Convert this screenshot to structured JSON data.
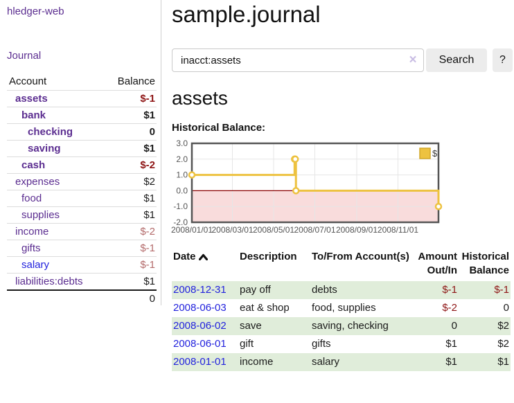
{
  "colors": {
    "link_purple": "#5b2d90",
    "link_blue": "#2222dd",
    "negative_strong": "#8e1515",
    "negative_muted": "#b36a6a",
    "row_stripe_green": "#e0edda",
    "chart_yellow": "#edc240"
  },
  "sidebar": {
    "brand": "hledger-web",
    "nav_journal": "Journal",
    "accounts_table": {
      "account_header": "Account",
      "balance_header": "Balance",
      "rows": [
        {
          "account": "assets",
          "balance": "$-1",
          "indent": 1,
          "bold": true,
          "neg": "strong"
        },
        {
          "account": "bank",
          "balance": "$1",
          "indent": 2,
          "bold": true
        },
        {
          "account": "checking",
          "balance": "0",
          "indent": 3,
          "bold": true
        },
        {
          "account": "saving",
          "balance": "$1",
          "indent": 3,
          "bold": true
        },
        {
          "account": "cash",
          "balance": "$-2",
          "indent": 2,
          "bold": true,
          "neg": "strong"
        },
        {
          "account": "expenses",
          "balance": "$2",
          "indent": 1
        },
        {
          "account": "food",
          "balance": "$1",
          "indent": 2
        },
        {
          "account": "supplies",
          "balance": "$1",
          "indent": 2
        },
        {
          "account": "income",
          "balance": "$-2",
          "indent": 1,
          "neg": "muted"
        },
        {
          "account": "gifts",
          "balance": "$-1",
          "indent": 2,
          "neg": "muted"
        },
        {
          "account": "salary",
          "balance": "$-1",
          "indent": 2,
          "neg": "muted",
          "link": "blue"
        },
        {
          "account": "liabilities:debts",
          "balance": "$1",
          "indent": 1
        }
      ],
      "total": "0"
    }
  },
  "main": {
    "title": "sample.journal",
    "search": {
      "value": "inacct:assets",
      "clear_icon": "×",
      "search_button": "Search",
      "help_button": "?"
    },
    "account_heading": "assets",
    "chart_title": "Historical Balance:"
  },
  "chart_data": {
    "type": "line",
    "step": true,
    "title": "Historical Balance",
    "series": [
      {
        "name": "$",
        "color": "#edc240",
        "points": [
          [
            "2008-01-01",
            1
          ],
          [
            "2008-06-01",
            2
          ],
          [
            "2008-06-02",
            2
          ],
          [
            "2008-06-03",
            0
          ],
          [
            "2008-12-31",
            -1
          ]
        ]
      }
    ],
    "x_ticks": [
      {
        "label": "2008/01/01",
        "date": "2008-01-01"
      },
      {
        "label": "2008/03/01",
        "date": "2008-03-01"
      },
      {
        "label": "2008/05/01",
        "date": "2008-05-01"
      },
      {
        "label": "2008/07/01",
        "date": "2008-07-01"
      },
      {
        "label": "2008/09/01",
        "date": "2008-09-01"
      },
      {
        "label": "2008/11/01",
        "date": "2008-11-01"
      }
    ],
    "y_ticks": [
      "3.0",
      "2.0",
      "1.0",
      "0.0",
      "-1.0",
      "-2.0"
    ],
    "ylim": [
      -2,
      3
    ],
    "xlim": [
      "2008-01-01",
      "2008-12-31"
    ],
    "legend": {
      "label": "$",
      "position": "top-right"
    },
    "negative_fill": "#f9dcdc",
    "zero_line_color": "#8b0000",
    "grid_color": "#e6e6e6",
    "border_color": "#545454",
    "grid": true
  },
  "register": {
    "headers": {
      "date": "Date",
      "description": "Description",
      "accounts": "To/From Account(s)",
      "amount": "Amount Out/In",
      "balance": "Historical Balance"
    },
    "rows": [
      {
        "date": "2008-12-31",
        "description": "pay off",
        "accounts": "debts",
        "amount": "$-1",
        "balance": "$-1",
        "amount_neg": true,
        "balance_neg": true
      },
      {
        "date": "2008-06-03",
        "description": "eat & shop",
        "accounts": "food, supplies",
        "amount": "$-2",
        "balance": "0",
        "amount_neg": true
      },
      {
        "date": "2008-06-02",
        "description": "save",
        "accounts": "saving, checking",
        "amount": "0",
        "balance": "$2"
      },
      {
        "date": "2008-06-01",
        "description": "gift",
        "accounts": "gifts",
        "amount": "$1",
        "balance": "$2"
      },
      {
        "date": "2008-01-01",
        "description": "income",
        "accounts": "salary",
        "amount": "$1",
        "balance": "$1"
      }
    ]
  }
}
